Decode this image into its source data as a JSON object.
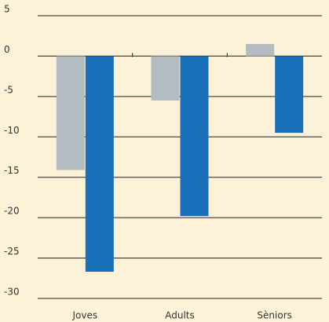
{
  "chart_data": {
    "type": "bar",
    "categories": [
      "Joves",
      "Adults",
      "Sèniors"
    ],
    "series": [
      {
        "color": "#b3bcc1",
        "values": [
          -14.1,
          -5.5,
          1.5
        ]
      },
      {
        "color": "#1a6fba",
        "values": [
          -26.7,
          -19.8,
          -9.5
        ]
      }
    ],
    "ylim": [
      -30,
      5
    ],
    "yticks": [
      5,
      0,
      -5,
      -10,
      -15,
      -20,
      -25,
      -30
    ],
    "grid": true
  }
}
